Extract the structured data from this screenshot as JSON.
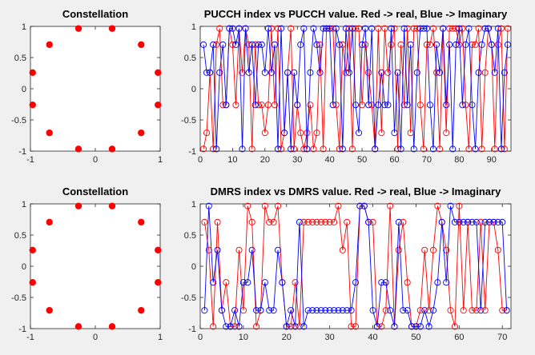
{
  "colors": {
    "background": "#f0f0f0",
    "axes": "#ffffff",
    "real": "#ff0000",
    "imaginary": "#0000ff",
    "constellation": "#ff0000",
    "text": "#000000"
  },
  "chart_data": [
    {
      "id": "const1",
      "type": "scatter",
      "title": "Constellation",
      "xlim": [
        -1,
        1
      ],
      "ylim": [
        -1,
        1
      ],
      "xticks": [
        -1,
        0,
        1
      ],
      "yticks": [
        -1,
        -0.5,
        0,
        0.5,
        1
      ],
      "xtick_labels": [
        "-1",
        "0",
        "1"
      ],
      "ytick_labels": [
        "-1",
        "-0.5",
        "0",
        "0.5",
        "1"
      ],
      "grid": false,
      "points": [
        [
          -0.259,
          0.966
        ],
        [
          0.259,
          0.966
        ],
        [
          -0.707,
          0.707
        ],
        [
          0.707,
          0.707
        ],
        [
          -0.966,
          0.259
        ],
        [
          0.966,
          0.259
        ],
        [
          -0.966,
          -0.259
        ],
        [
          0.966,
          -0.259
        ],
        [
          -0.707,
          -0.707
        ],
        [
          0.707,
          -0.707
        ],
        [
          -0.259,
          -0.966
        ],
        [
          0.259,
          -0.966
        ]
      ]
    },
    {
      "id": "pucch",
      "type": "line",
      "title": "PUCCH index vs PUCCH value. Red -> real, Blue -> Imaginary",
      "xlim": [
        0,
        96
      ],
      "ylim": [
        -1,
        1
      ],
      "xticks": [
        0,
        10,
        20,
        30,
        40,
        50,
        60,
        70,
        80,
        90
      ],
      "yticks": [
        -1,
        -0.5,
        0,
        0.5,
        1
      ],
      "xtick_labels": [
        "0",
        "10",
        "20",
        "30",
        "40",
        "50",
        "60",
        "70",
        "80",
        "90"
      ],
      "ytick_labels": [
        "-1",
        "-0.5",
        "0",
        "0.5",
        "1"
      ],
      "grid": false,
      "x_start": 1,
      "series": [
        {
          "color": "#ff0000",
          "values": [
            -0.966,
            -0.707,
            0.259,
            -0.966,
            0.707,
            0.966,
            -0.259,
            -0.259,
            0.966,
            0.707,
            -0.259,
            0.966,
            0.259,
            0.966,
            0.707,
            -0.966,
            0.707,
            -0.259,
            -0.259,
            -0.707,
            -0.259,
            0.966,
            -0.259,
            0.966,
            -0.966,
            -0.707,
            0.259,
            0.966,
            -0.966,
            -0.259,
            -0.707,
            -0.966,
            -0.707,
            -0.259,
            -0.966,
            -0.707,
            0.707,
            -0.966,
            0.966,
            0.966,
            0.966,
            -0.259,
            -0.966,
            0.707,
            0.259,
            0.966,
            -0.966,
            0.966,
            0.966,
            -0.259,
            0.707,
            0.259,
            -0.259,
            -0.966,
            0.966,
            -0.707,
            0.966,
            0.259,
            0.707,
            0.966,
            -0.966,
            0.707,
            -0.259,
            0.966,
            -0.707,
            0.966,
            0.966,
            -0.259,
            -0.966,
            0.707,
            0.707,
            0.966,
            0.259,
            -0.966,
            0.966,
            -0.707,
            0.966,
            0.966,
            0.966,
            0.707,
            0.966,
            -0.259,
            -0.966,
            0.707,
            0.707,
            0.966,
            -0.966,
            0.259,
            0.966,
            0.707,
            -0.966,
            0.707,
            0.966,
            -0.966,
            0.966
          ]
        },
        {
          "color": "#0000ff",
          "values": [
            0.707,
            0.259,
            0.259,
            0.707,
            -0.966,
            0.259,
            0.707,
            -0.259,
            0.966,
            0.966,
            0.707,
            0.966,
            -0.966,
            0.966,
            0.259,
            0.707,
            -0.259,
            0.707,
            0.707,
            0.259,
            0.966,
            0.259,
            0.707,
            -0.966,
            0.966,
            -0.707,
            0.259,
            -0.966,
            0.259,
            -0.259,
            0.707,
            0.966,
            -0.966,
            0.259,
            0.966,
            0.707,
            0.259,
            0.966,
            0.966,
            0.966,
            -0.259,
            0.966,
            0.707,
            -0.966,
            0.966,
            0.259,
            0.966,
            -0.259,
            -0.707,
            0.707,
            0.966,
            -0.259,
            0.966,
            -0.966,
            -0.259,
            0.259,
            -0.259,
            -0.259,
            0.966,
            -0.707,
            0.259,
            -0.966,
            0.966,
            -0.259,
            0.707,
            -0.966,
            0.259,
            0.966,
            0.966,
            0.966,
            -0.259,
            -0.966,
            0.707,
            0.259,
            0.966,
            -0.259,
            0.707,
            -0.966,
            0.707,
            0.966,
            -0.259,
            0.707,
            0.966,
            -0.259,
            -0.966,
            0.259,
            0.707,
            0.966,
            0.966,
            0.707,
            0.259,
            0.966,
            -0.966,
            0.259,
            0.707
          ]
        }
      ]
    },
    {
      "id": "const2",
      "type": "scatter",
      "title": "Constellation",
      "xlim": [
        -1,
        1
      ],
      "ylim": [
        -1,
        1
      ],
      "xticks": [
        -1,
        0,
        1
      ],
      "yticks": [
        -1,
        -0.5,
        0,
        0.5,
        1
      ],
      "xtick_labels": [
        "-1",
        "0",
        "1"
      ],
      "ytick_labels": [
        "-1",
        "-0.5",
        "0",
        "0.5",
        "1"
      ],
      "grid": false,
      "points": [
        [
          -0.259,
          0.966
        ],
        [
          0.259,
          0.966
        ],
        [
          -0.707,
          0.707
        ],
        [
          0.707,
          0.707
        ],
        [
          -0.966,
          0.259
        ],
        [
          0.966,
          0.259
        ],
        [
          -0.966,
          -0.259
        ],
        [
          0.966,
          -0.259
        ],
        [
          -0.707,
          -0.707
        ],
        [
          0.707,
          -0.707
        ],
        [
          -0.259,
          -0.966
        ],
        [
          0.259,
          -0.966
        ]
      ]
    },
    {
      "id": "dmrs",
      "type": "line",
      "title": "DMRS index vs DMRS value. Red -> real, Blue -> Imaginary",
      "xlim": [
        0,
        72
      ],
      "ylim": [
        -1,
        1
      ],
      "xticks": [
        0,
        10,
        20,
        30,
        40,
        50,
        60,
        70
      ],
      "yticks": [
        -1,
        -0.5,
        0,
        0.5,
        1
      ],
      "xtick_labels": [
        "0",
        "10",
        "20",
        "30",
        "40",
        "50",
        "60",
        "70"
      ],
      "ytick_labels": [
        "-1",
        "-0.5",
        "0",
        "0.5",
        "1"
      ],
      "grid": false,
      "x_start": 1,
      "series": [
        {
          "color": "#ff0000",
          "values": [
            0.707,
            0.259,
            -0.966,
            0.707,
            -0.707,
            -0.259,
            -0.966,
            -0.966,
            0.259,
            -0.707,
            0.966,
            0.707,
            -0.966,
            -0.707,
            0.966,
            0.707,
            0.707,
            0.966,
            -0.259,
            -0.966,
            -0.966,
            -0.259,
            -0.966,
            0.707,
            0.707,
            0.707,
            0.707,
            0.707,
            0.707,
            0.707,
            0.707,
            0.966,
            0.259,
            0.707,
            -0.966,
            -0.966,
            0.966,
            0.966,
            0.707,
            0.707,
            -0.966,
            -0.966,
            -0.707,
            0.966,
            -0.966,
            0.259,
            0.707,
            -0.259,
            -0.966,
            -0.966,
            -0.707,
            0.259,
            -0.707,
            0.259,
            0.966,
            0.707,
            0.259,
            -0.707,
            -0.966,
            0.966,
            -0.707,
            0.707,
            -0.707,
            -0.707,
            0.707,
            -0.707,
            0.707,
            0.707,
            0.259,
            -0.707,
            -0.707
          ]
        },
        {
          "color": "#0000ff",
          "values": [
            -0.707,
            0.966,
            -0.259,
            0.259,
            -0.707,
            -0.966,
            -0.966,
            -0.707,
            -0.966,
            -0.259,
            -0.259,
            0.259,
            -0.707,
            -0.707,
            -0.259,
            -0.707,
            -0.707,
            0.259,
            -0.259,
            -0.966,
            -0.707,
            -0.966,
            0.707,
            -0.966,
            -0.707,
            -0.707,
            -0.707,
            -0.707,
            -0.707,
            -0.707,
            -0.707,
            -0.707,
            -0.707,
            -0.707,
            -0.707,
            -0.259,
            0.966,
            0.966,
            0.707,
            -0.707,
            -0.966,
            -0.259,
            -0.259,
            -0.707,
            -0.966,
            0.707,
            -0.707,
            -0.707,
            -0.966,
            -0.966,
            -0.966,
            -0.707,
            -0.966,
            -0.707,
            -0.259,
            0.707,
            -0.259,
            0.966,
            0.707,
            0.707,
            0.707,
            0.707,
            0.707,
            0.707,
            -0.707,
            0.707,
            0.707,
            0.707,
            0.707,
            0.707,
            -0.707
          ]
        }
      ]
    }
  ]
}
